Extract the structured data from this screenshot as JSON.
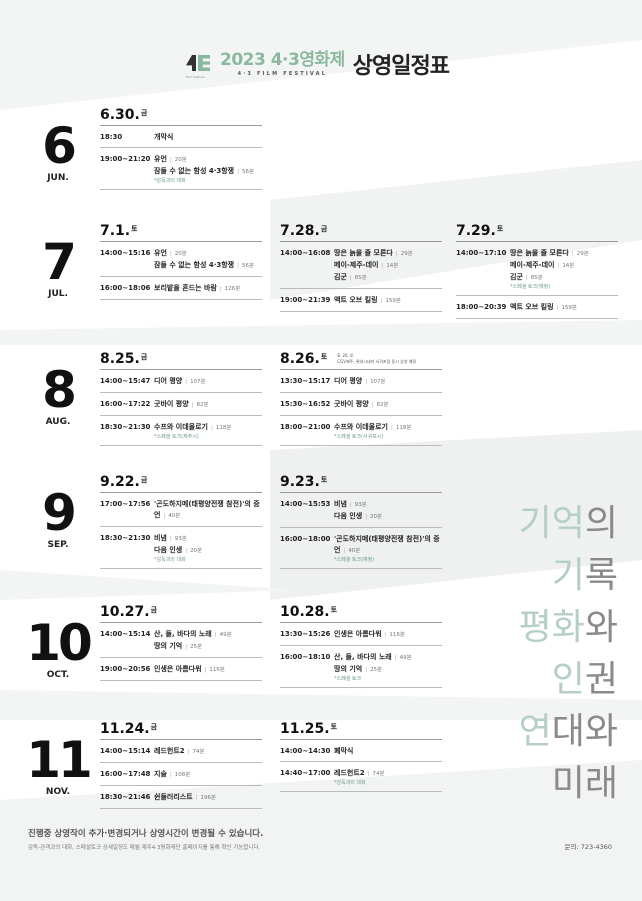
{
  "header": {
    "logo_text": "Film Festival",
    "festival_title": "2023 4·3영화제",
    "festival_subtitle": "4·3 FILM FESTIVAL",
    "schedule_title": "상영일정표"
  },
  "months": [
    {
      "num": "6",
      "name": "JUN.",
      "days": [
        {
          "date": "6.30.",
          "weekday": "금",
          "sessions": [
            {
              "time": "18:30",
              "films": [
                {
                  "title": "개막식"
                }
              ]
            },
            {
              "time": "19:00~21:20",
              "films": [
                {
                  "title": "유언",
                  "runtime": "20분"
                },
                {
                  "title": "잠들 수 없는 함성 4·3항쟁",
                  "runtime": "56분",
                  "note": "*감독과의 대화"
                }
              ]
            }
          ]
        }
      ]
    },
    {
      "num": "7",
      "name": "JUL.",
      "days": [
        {
          "date": "7.1.",
          "weekday": "토",
          "sessions": [
            {
              "time": "14:00~15:16",
              "films": [
                {
                  "title": "유언",
                  "runtime": "20분"
                },
                {
                  "title": "잠들 수 없는 함성 4·3항쟁",
                  "runtime": "56분"
                }
              ]
            },
            {
              "time": "16:00~18:06",
              "films": [
                {
                  "title": "보리밭을 흔드는 바람",
                  "runtime": "126분"
                }
              ]
            }
          ]
        },
        {
          "date": "7.28.",
          "weekday": "금",
          "sessions": [
            {
              "time": "14:00~16:08",
              "films": [
                {
                  "title": "땅은 늙을 줄 모른다",
                  "runtime": "29분"
                },
                {
                  "title": "메이-제주-데이",
                  "runtime": "14분"
                },
                {
                  "title": "김군",
                  "runtime": "85분"
                }
              ]
            },
            {
              "time": "19:00~21:39",
              "films": [
                {
                  "title": "액트 오브 킬링",
                  "runtime": "159분"
                }
              ]
            }
          ]
        },
        {
          "date": "7.29.",
          "weekday": "토",
          "sessions": [
            {
              "time": "14:00~17:10",
              "films": [
                {
                  "title": "땅은 늙을 줄 모른다",
                  "runtime": "29분"
                },
                {
                  "title": "메이-제주-데이",
                  "runtime": "14분"
                },
                {
                  "title": "김군",
                  "runtime": "85분",
                  "note": "*스페셜 토크(예정)"
                }
              ]
            },
            {
              "time": "18:00~20:39",
              "films": [
                {
                  "title": "액트 오브 킬링",
                  "runtime": "159분"
                }
              ]
            }
          ]
        }
      ]
    },
    {
      "num": "8",
      "name": "AUG.",
      "days": [
        {
          "date": "8.25.",
          "weekday": "금",
          "sessions": [
            {
              "time": "14:00~15:47",
              "films": [
                {
                  "title": "디어 평양",
                  "runtime": "107분"
                }
              ]
            },
            {
              "time": "16:00~17:22",
              "films": [
                {
                  "title": "굿바이 평양",
                  "runtime": "82분"
                }
              ]
            },
            {
              "time": "18:30~21:30",
              "films": [
                {
                  "title": "수프와 이데올로기",
                  "runtime": "118분",
                  "note": "*스페셜 토크(제주시)"
                }
              ]
            }
          ]
        },
        {
          "date": "8.26.",
          "weekday": "토",
          "note": [
            "8. 26. 토",
            "CGV제주, 롯데시네마 서귀포점 동시 상영 예정"
          ],
          "sessions": [
            {
              "time": "13:30~15:17",
              "films": [
                {
                  "title": "디어 평양",
                  "runtime": "107분"
                }
              ]
            },
            {
              "time": "15:30~16:52",
              "films": [
                {
                  "title": "굿바이 평양",
                  "runtime": "82분"
                }
              ]
            },
            {
              "time": "18:00~21:00",
              "films": [
                {
                  "title": "수프와 이데올로기",
                  "runtime": "118분",
                  "note": "*스페셜 토크(서귀포시)"
                }
              ]
            }
          ]
        }
      ]
    },
    {
      "num": "9",
      "name": "SEP.",
      "days": [
        {
          "date": "9.22.",
          "weekday": "금",
          "sessions": [
            {
              "time": "17:00~17:56",
              "films": [
                {
                  "title": "'곤도하지메(태평양전쟁 참전)'의 증언",
                  "runtime": "40분"
                }
              ]
            },
            {
              "time": "18:30~21:30",
              "films": [
                {
                  "title": "비념",
                  "runtime": "93분"
                },
                {
                  "title": "다음 인생",
                  "runtime": "20분",
                  "note": "*감독과의 대화"
                }
              ]
            }
          ]
        },
        {
          "date": "9.23.",
          "weekday": "토",
          "sessions": [
            {
              "time": "14:00~15:53",
              "films": [
                {
                  "title": "비념",
                  "runtime": "93분"
                },
                {
                  "title": "다음 인생",
                  "runtime": "20분"
                }
              ]
            },
            {
              "time": "16:00~18:00",
              "films": [
                {
                  "title": "'곤도하지메(태평양전쟁 참전)'의 증언",
                  "runtime": "40분",
                  "note": "*스페셜 토크(예정)"
                }
              ]
            }
          ]
        }
      ]
    },
    {
      "num": "10",
      "name": "OCT.",
      "days": [
        {
          "date": "10.27.",
          "weekday": "금",
          "sessions": [
            {
              "time": "14:00~15:14",
              "films": [
                {
                  "title": "산, 들, 바다의 노래",
                  "runtime": "49분"
                },
                {
                  "title": "땅의 기억",
                  "runtime": "25분"
                }
              ]
            },
            {
              "time": "19:00~20:56",
              "films": [
                {
                  "title": "인생은 아름다워",
                  "runtime": "116분"
                }
              ]
            }
          ]
        },
        {
          "date": "10.28.",
          "weekday": "토",
          "sessions": [
            {
              "time": "13:30~15:26",
              "films": [
                {
                  "title": "인생은 아름다워",
                  "runtime": "116분"
                }
              ]
            },
            {
              "time": "16:00~18:10",
              "films": [
                {
                  "title": "산, 들, 바다의 노래",
                  "runtime": "49분"
                },
                {
                  "title": "땅의 기억",
                  "runtime": "25분",
                  "note": "*스페셜 토크"
                }
              ]
            }
          ]
        }
      ]
    },
    {
      "num": "11",
      "name": "NOV.",
      "days": [
        {
          "date": "11.24.",
          "weekday": "금",
          "sessions": [
            {
              "time": "14:00~15:14",
              "films": [
                {
                  "title": "레드헌트2",
                  "runtime": "74분"
                }
              ]
            },
            {
              "time": "16:00~17:48",
              "films": [
                {
                  "title": "지슬",
                  "runtime": "108분"
                }
              ]
            },
            {
              "time": "18:30~21:46",
              "films": [
                {
                  "title": "쉰들러리스트",
                  "runtime": "196분"
                }
              ]
            }
          ]
        },
        {
          "date": "11.25.",
          "weekday": "토",
          "sessions": [
            {
              "time": "14:00~14:30",
              "films": [
                {
                  "title": "폐막식"
                }
              ]
            },
            {
              "time": "14:40~17:00",
              "films": [
                {
                  "title": "레드헌트2",
                  "runtime": "74분",
                  "note": "*감독과의 대화"
                }
              ]
            }
          ]
        }
      ]
    }
  ],
  "slogan": [
    {
      "light": "기억",
      "dark": "의"
    },
    {
      "light": "기",
      "dark": "록"
    },
    {
      "light": "평화",
      "dark": "와"
    },
    {
      "light": "인",
      "dark": "권"
    },
    {
      "light": "연",
      "dark": "대와"
    },
    {
      "light": "",
      "dark": "미래"
    }
  ],
  "footer": {
    "notice": "진행중 상영작이 추가·변경되거나 상영시간이 변경될 수 있습니다.",
    "detail": "감독-관객과의 대화, 스페셜토크 상세일정도 매월 제주4·3평화재단 홈페이지를 통해 확인 가능합니다.",
    "contact": "문의: 723-4360"
  },
  "colors": {
    "accent": "#8cb89f",
    "note": "#6f9a88",
    "band": "#eef1ef"
  }
}
